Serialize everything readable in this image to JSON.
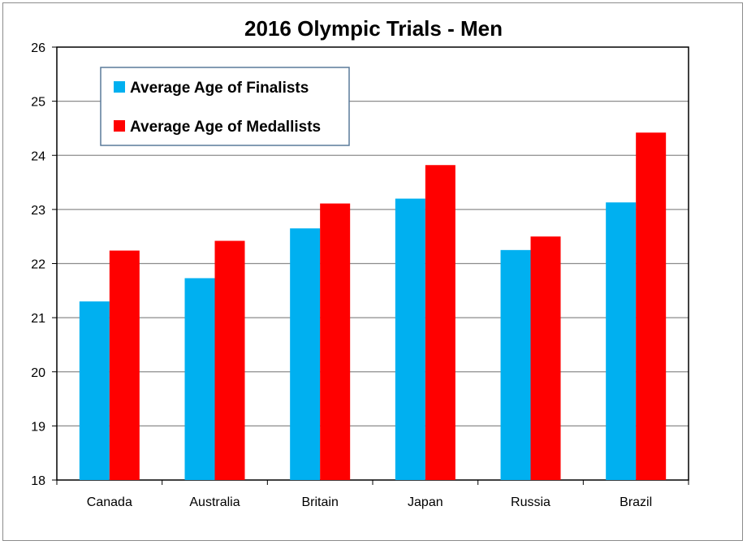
{
  "chart_data": {
    "type": "bar",
    "title": "2016 Olympic Trials - Men",
    "xlabel": "",
    "ylabel": "",
    "categories": [
      "Canada",
      "Australia",
      "Britain",
      "Japan",
      "Russia",
      "Brazil"
    ],
    "series": [
      {
        "name": "Average Age of Finalists",
        "color": "#00b0f0",
        "values": [
          21.3,
          21.73,
          22.65,
          23.2,
          22.25,
          23.13
        ]
      },
      {
        "name": "Average Age of Medallists",
        "color": "#ff0000",
        "values": [
          22.24,
          22.42,
          23.11,
          23.82,
          22.5,
          24.42
        ]
      }
    ],
    "ylim": [
      18,
      26
    ],
    "yticks": [
      "18",
      "19",
      "20",
      "21",
      "22",
      "23",
      "24",
      "25",
      "26"
    ],
    "grid": true,
    "legend_position": "top-left"
  }
}
